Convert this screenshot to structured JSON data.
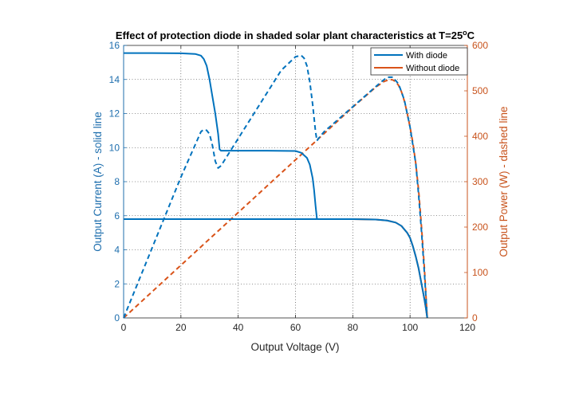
{
  "chart_data": {
    "type": "line",
    "title": "Effect of protection diode in shaded solar plant characteristics at T=25",
    "title_superscript": "o",
    "title_suffix": "C",
    "xlabel": "Output Voltage (V)",
    "ylabel_left": "Output Current (A) - solid line",
    "ylabel_right": "Output Power (W) - dashed line",
    "xlim": [
      0,
      120
    ],
    "ylim_left": [
      0,
      16
    ],
    "ylim_right": [
      0,
      600
    ],
    "x_ticks": [
      "0",
      "20",
      "40",
      "60",
      "80",
      "100",
      "120"
    ],
    "y_left_ticks": [
      "0",
      "2",
      "4",
      "6",
      "8",
      "10",
      "12",
      "14",
      "16"
    ],
    "y_right_ticks": [
      "0",
      "100",
      "200",
      "300",
      "400",
      "500",
      "600"
    ],
    "grid": "dotted",
    "legend_position": "top-right",
    "colors": {
      "with_diode": "#0072bd",
      "without_diode": "#d95319",
      "left_axis": "#1f6fae",
      "right_axis": "#c8531c"
    },
    "series": [
      {
        "name": "With diode",
        "axis": "left",
        "style": "solid",
        "x": [
          0,
          10,
          20,
          25,
          27,
          28,
          29,
          30,
          31,
          32,
          33,
          33.5,
          34,
          40,
          50,
          60,
          62,
          64,
          65,
          66,
          66.5,
          67,
          67.5
        ],
        "y": [
          15.55,
          15.55,
          15.54,
          15.5,
          15.4,
          15.2,
          14.8,
          14.0,
          13.0,
          12.0,
          10.8,
          9.9,
          9.82,
          9.82,
          9.82,
          9.8,
          9.7,
          9.4,
          9.0,
          8.2,
          7.5,
          6.6,
          5.8
        ]
      },
      {
        "name": "With diode",
        "axis": "left",
        "style": "solid",
        "x": [
          0,
          20,
          40,
          60,
          80,
          88,
          92,
          95,
          97,
          99,
          100,
          101,
          102,
          103,
          104,
          105,
          105.5,
          106
        ],
        "y": [
          5.8,
          5.8,
          5.8,
          5.8,
          5.8,
          5.78,
          5.72,
          5.6,
          5.4,
          5.0,
          4.7,
          4.2,
          3.6,
          2.9,
          2.0,
          1.1,
          0.6,
          0
        ]
      },
      {
        "name": "With diode",
        "axis": "right",
        "style": "dashed",
        "x": [
          0,
          10,
          20,
          27,
          28,
          29,
          30,
          31,
          32,
          33,
          34,
          35,
          40,
          50,
          55,
          60,
          62,
          63,
          64,
          65,
          66,
          67,
          67.5,
          68,
          70,
          80,
          90,
          92,
          94,
          96,
          98,
          100,
          102,
          103,
          104,
          105,
          106
        ],
        "y": [
          0,
          155,
          310,
          410,
          415,
          413,
          405,
          380,
          345,
          330,
          335,
          345,
          395,
          495,
          545,
          575,
          578,
          572,
          555,
          520,
          470,
          410,
          390,
          395,
          410,
          465,
          520,
          530,
          530,
          515,
          480,
          420,
          340,
          270,
          190,
          100,
          0
        ]
      },
      {
        "name": "Without diode",
        "axis": "left",
        "style": "solid",
        "x": [
          0,
          20,
          40,
          60,
          80,
          88,
          92,
          95,
          97,
          99,
          100,
          101,
          102,
          103,
          104,
          105,
          105.5,
          106
        ],
        "y": [
          5.8,
          5.8,
          5.8,
          5.8,
          5.8,
          5.78,
          5.72,
          5.6,
          5.4,
          5.0,
          4.7,
          4.2,
          3.6,
          2.9,
          2.0,
          1.1,
          0.6,
          0
        ]
      },
      {
        "name": "Without diode",
        "axis": "right",
        "style": "dashed",
        "x": [
          0,
          10,
          20,
          30,
          40,
          50,
          60,
          70,
          80,
          88,
          91,
          93,
          94,
          95,
          96,
          97,
          98,
          99,
          100,
          101,
          102,
          103,
          104,
          105,
          106
        ],
        "y": [
          0,
          58,
          116,
          174,
          232,
          290,
          348,
          406,
          464,
          508,
          521,
          525,
          524,
          520,
          512,
          498,
          478,
          451,
          420,
          385,
          340,
          280,
          200,
          110,
          0
        ]
      }
    ]
  }
}
